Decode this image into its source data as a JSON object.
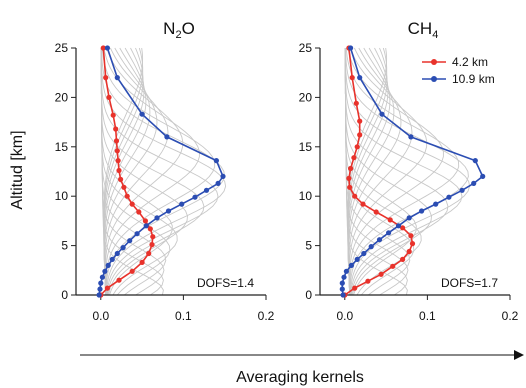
{
  "figure": {
    "ylabel": "Altitud [km]",
    "xlabel": "Averaging kernels",
    "line_color": "#222222",
    "grid_kernel_color": "#c8c8c8"
  },
  "chart_data": [
    {
      "type": "line",
      "title": "N₂O",
      "title_parts": [
        "N",
        "2",
        "O"
      ],
      "annotation": "DOFS=1.4",
      "xlim": [
        -0.03,
        0.2
      ],
      "ylim": [
        0,
        25
      ],
      "xticks": [
        "0.0",
        "0.1",
        "0.2"
      ],
      "yticks": [
        "0",
        "5",
        "10",
        "15",
        "20",
        "25"
      ],
      "grid": false,
      "series": [
        {
          "name": "4.2 km",
          "color": "#e8322b",
          "points": [
            {
              "x": 0.0,
              "y": 0.0
            },
            {
              "x": 0.008,
              "y": 0.7
            },
            {
              "x": 0.022,
              "y": 1.5
            },
            {
              "x": 0.038,
              "y": 2.4
            },
            {
              "x": 0.05,
              "y": 3.3
            },
            {
              "x": 0.058,
              "y": 4.2
            },
            {
              "x": 0.062,
              "y": 5.1
            },
            {
              "x": 0.063,
              "y": 5.9
            },
            {
              "x": 0.06,
              "y": 6.7
            },
            {
              "x": 0.054,
              "y": 7.5
            },
            {
              "x": 0.046,
              "y": 8.4
            },
            {
              "x": 0.038,
              "y": 9.2
            },
            {
              "x": 0.032,
              "y": 10.0
            },
            {
              "x": 0.028,
              "y": 10.9
            },
            {
              "x": 0.024,
              "y": 11.7
            },
            {
              "x": 0.022,
              "y": 12.6
            },
            {
              "x": 0.021,
              "y": 13.6
            },
            {
              "x": 0.02,
              "y": 14.6
            },
            {
              "x": 0.019,
              "y": 15.6
            },
            {
              "x": 0.018,
              "y": 16.8
            },
            {
              "x": 0.015,
              "y": 18.2
            },
            {
              "x": 0.01,
              "y": 20.0
            },
            {
              "x": 0.006,
              "y": 22.0
            },
            {
              "x": 0.003,
              "y": 25.0
            }
          ]
        },
        {
          "name": "10.9 km",
          "color": "#2b4db3",
          "points": [
            {
              "x": -0.002,
              "y": 0.0
            },
            {
              "x": -0.001,
              "y": 0.6
            },
            {
              "x": 0.0,
              "y": 1.2
            },
            {
              "x": 0.002,
              "y": 1.8
            },
            {
              "x": 0.005,
              "y": 2.4
            },
            {
              "x": 0.009,
              "y": 3.0
            },
            {
              "x": 0.014,
              "y": 3.6
            },
            {
              "x": 0.02,
              "y": 4.2
            },
            {
              "x": 0.027,
              "y": 4.8
            },
            {
              "x": 0.035,
              "y": 5.5
            },
            {
              "x": 0.044,
              "y": 6.2
            },
            {
              "x": 0.055,
              "y": 7.0
            },
            {
              "x": 0.068,
              "y": 7.8
            },
            {
              "x": 0.082,
              "y": 8.5
            },
            {
              "x": 0.098,
              "y": 9.2
            },
            {
              "x": 0.114,
              "y": 9.9
            },
            {
              "x": 0.128,
              "y": 10.6
            },
            {
              "x": 0.142,
              "y": 11.3
            },
            {
              "x": 0.148,
              "y": 12.0
            },
            {
              "x": 0.14,
              "y": 13.6
            },
            {
              "x": 0.08,
              "y": 16.0
            },
            {
              "x": 0.05,
              "y": 18.3
            },
            {
              "x": 0.02,
              "y": 22.0
            },
            {
              "x": 0.008,
              "y": 25.0
            }
          ]
        }
      ]
    },
    {
      "type": "line",
      "title": "CH₄",
      "title_parts": [
        "CH",
        "4",
        ""
      ],
      "annotation": "DOFS=1.7",
      "xlim": [
        -0.03,
        0.2
      ],
      "ylim": [
        0,
        25
      ],
      "xticks": [
        "0.0",
        "0.1",
        "0.2"
      ],
      "yticks": [
        "0",
        "5",
        "10",
        "15",
        "20",
        "25"
      ],
      "grid": false,
      "legend": "top-right",
      "series": [
        {
          "name": "4.2 km",
          "color": "#e8322b",
          "points": [
            {
              "x": 0.0,
              "y": 0.0
            },
            {
              "x": 0.012,
              "y": 0.7
            },
            {
              "x": 0.028,
              "y": 1.4
            },
            {
              "x": 0.044,
              "y": 2.1
            },
            {
              "x": 0.058,
              "y": 2.9
            },
            {
              "x": 0.07,
              "y": 3.6
            },
            {
              "x": 0.078,
              "y": 4.4
            },
            {
              "x": 0.082,
              "y": 5.2
            },
            {
              "x": 0.08,
              "y": 6.0
            },
            {
              "x": 0.07,
              "y": 6.8
            },
            {
              "x": 0.055,
              "y": 7.6
            },
            {
              "x": 0.038,
              "y": 8.4
            },
            {
              "x": 0.022,
              "y": 9.2
            },
            {
              "x": 0.012,
              "y": 10.0
            },
            {
              "x": 0.006,
              "y": 10.9
            },
            {
              "x": 0.005,
              "y": 11.8
            },
            {
              "x": 0.007,
              "y": 12.8
            },
            {
              "x": 0.011,
              "y": 13.9
            },
            {
              "x": 0.015,
              "y": 15.0
            },
            {
              "x": 0.018,
              "y": 16.2
            },
            {
              "x": 0.018,
              "y": 17.6
            },
            {
              "x": 0.014,
              "y": 19.4
            },
            {
              "x": 0.009,
              "y": 22.0
            },
            {
              "x": 0.005,
              "y": 25.0
            }
          ]
        },
        {
          "name": "10.9 km",
          "color": "#2b4db3",
          "points": [
            {
              "x": -0.002,
              "y": 0.0
            },
            {
              "x": -0.003,
              "y": 0.6
            },
            {
              "x": -0.003,
              "y": 1.2
            },
            {
              "x": -0.001,
              "y": 1.8
            },
            {
              "x": 0.002,
              "y": 2.4
            },
            {
              "x": 0.008,
              "y": 3.0
            },
            {
              "x": 0.015,
              "y": 3.6
            },
            {
              "x": 0.023,
              "y": 4.2
            },
            {
              "x": 0.032,
              "y": 4.9
            },
            {
              "x": 0.042,
              "y": 5.6
            },
            {
              "x": 0.053,
              "y": 6.3
            },
            {
              "x": 0.065,
              "y": 7.0
            },
            {
              "x": 0.078,
              "y": 7.8
            },
            {
              "x": 0.093,
              "y": 8.5
            },
            {
              "x": 0.11,
              "y": 9.2
            },
            {
              "x": 0.126,
              "y": 9.9
            },
            {
              "x": 0.142,
              "y": 10.6
            },
            {
              "x": 0.156,
              "y": 11.3
            },
            {
              "x": 0.167,
              "y": 12.0
            },
            {
              "x": 0.158,
              "y": 13.6
            },
            {
              "x": 0.08,
              "y": 16.0
            },
            {
              "x": 0.045,
              "y": 18.3
            },
            {
              "x": 0.018,
              "y": 22.0
            },
            {
              "x": 0.007,
              "y": 25.0
            }
          ]
        }
      ]
    }
  ]
}
